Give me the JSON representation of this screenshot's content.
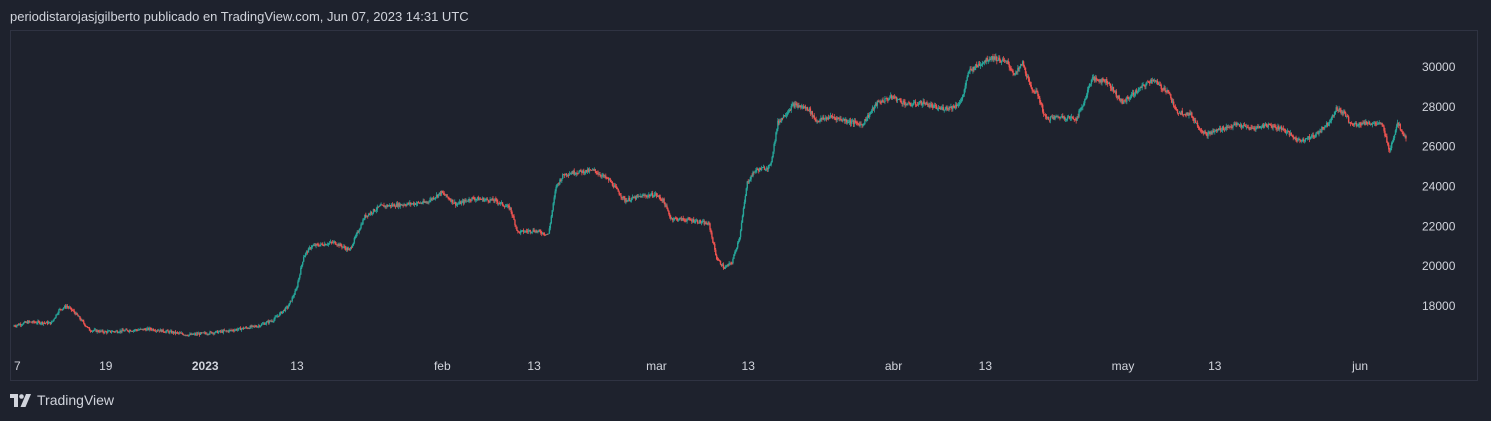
{
  "header": {
    "text": "periodistarojasjgilberto publicado en TradingView.com, Jun 07, 2023 14:31 UTC"
  },
  "footer": {
    "brand": "TradingView"
  },
  "colors": {
    "background": "#1e222d",
    "up": "#26a69a",
    "down": "#ef5350",
    "axis_text": "#d1d4dc",
    "border": "#2f3342"
  },
  "chart_data": {
    "type": "candlestick",
    "title": "",
    "xlabel": "",
    "ylabel": "",
    "x_range": [
      "2022-12-07",
      "2023-06-07"
    ],
    "ylim": [
      16000,
      31500
    ],
    "y_ticks": [
      18000,
      20000,
      22000,
      24000,
      26000,
      28000,
      30000
    ],
    "x_ticks": [
      {
        "date": "2022-12-07",
        "label": "7",
        "bold": false
      },
      {
        "date": "2022-12-19",
        "label": "19",
        "bold": false
      },
      {
        "date": "2023-01-01",
        "label": "2023",
        "bold": true
      },
      {
        "date": "2023-01-13",
        "label": "13",
        "bold": false
      },
      {
        "date": "2023-02-01",
        "label": "feb",
        "bold": false
      },
      {
        "date": "2023-02-13",
        "label": "13",
        "bold": false
      },
      {
        "date": "2023-03-01",
        "label": "mar",
        "bold": false
      },
      {
        "date": "2023-03-13",
        "label": "13",
        "bold": false
      },
      {
        "date": "2023-04-01",
        "label": "abr",
        "bold": false
      },
      {
        "date": "2023-04-13",
        "label": "13",
        "bold": false
      },
      {
        "date": "2023-05-01",
        "label": "may",
        "bold": false
      },
      {
        "date": "2023-05-13",
        "label": "13",
        "bold": false
      },
      {
        "date": "2023-06-01",
        "label": "jun",
        "bold": false
      }
    ],
    "price_path": [
      [
        "2022-12-07",
        17000
      ],
      [
        "2022-12-09",
        17200
      ],
      [
        "2022-12-12",
        17150
      ],
      [
        "2022-12-13",
        17800
      ],
      [
        "2022-12-14",
        18000
      ],
      [
        "2022-12-15",
        17700
      ],
      [
        "2022-12-17",
        16800
      ],
      [
        "2022-12-19",
        16700
      ],
      [
        "2022-12-25",
        16850
      ],
      [
        "2022-12-30",
        16550
      ],
      [
        "2023-01-04",
        16750
      ],
      [
        "2023-01-08",
        17000
      ],
      [
        "2023-01-10",
        17300
      ],
      [
        "2023-01-12",
        18000
      ],
      [
        "2023-01-13",
        18800
      ],
      [
        "2023-01-14",
        20500
      ],
      [
        "2023-01-15",
        21000
      ],
      [
        "2023-01-18",
        21200
      ],
      [
        "2023-01-20",
        20800
      ],
      [
        "2023-01-22",
        22500
      ],
      [
        "2023-01-24",
        23000
      ],
      [
        "2023-01-27",
        23100
      ],
      [
        "2023-01-30",
        23200
      ],
      [
        "2023-02-01",
        23700
      ],
      [
        "2023-02-03",
        23100
      ],
      [
        "2023-02-05",
        23400
      ],
      [
        "2023-02-08",
        23300
      ],
      [
        "2023-02-10",
        22900
      ],
      [
        "2023-02-11",
        21700
      ],
      [
        "2023-02-13",
        21800
      ],
      [
        "2023-02-15",
        21600
      ],
      [
        "2023-02-16",
        24000
      ],
      [
        "2023-02-17",
        24600
      ],
      [
        "2023-02-18",
        24700
      ],
      [
        "2023-02-21",
        24800
      ],
      [
        "2023-02-23",
        24300
      ],
      [
        "2023-02-25",
        23300
      ],
      [
        "2023-02-27",
        23500
      ],
      [
        "2023-03-01",
        23600
      ],
      [
        "2023-03-02",
        23300
      ],
      [
        "2023-03-03",
        22400
      ],
      [
        "2023-03-06",
        22300
      ],
      [
        "2023-03-08",
        22100
      ],
      [
        "2023-03-09",
        20400
      ],
      [
        "2023-03-10",
        19900
      ],
      [
        "2023-03-11",
        20200
      ],
      [
        "2023-03-12",
        21500
      ],
      [
        "2023-03-13",
        24200
      ],
      [
        "2023-03-14",
        24800
      ],
      [
        "2023-03-16",
        25000
      ],
      [
        "2023-03-17",
        27200
      ],
      [
        "2023-03-19",
        28100
      ],
      [
        "2023-03-21",
        27900
      ],
      [
        "2023-03-22",
        27300
      ],
      [
        "2023-03-24",
        27500
      ],
      [
        "2023-03-26",
        27300
      ],
      [
        "2023-03-28",
        27100
      ],
      [
        "2023-03-30",
        28200
      ],
      [
        "2023-04-01",
        28500
      ],
      [
        "2023-04-03",
        28100
      ],
      [
        "2023-04-05",
        28200
      ],
      [
        "2023-04-07",
        27900
      ],
      [
        "2023-04-09",
        28000
      ],
      [
        "2023-04-10",
        28300
      ],
      [
        "2023-04-11",
        29800
      ],
      [
        "2023-04-13",
        30300
      ],
      [
        "2023-04-14",
        30500
      ],
      [
        "2023-04-16",
        30200
      ],
      [
        "2023-04-17",
        29600
      ],
      [
        "2023-04-18",
        30200
      ],
      [
        "2023-04-19",
        29000
      ],
      [
        "2023-04-20",
        28600
      ],
      [
        "2023-04-21",
        27400
      ],
      [
        "2023-04-23",
        27500
      ],
      [
        "2023-04-25",
        27400
      ],
      [
        "2023-04-26",
        28200
      ],
      [
        "2023-04-27",
        29400
      ],
      [
        "2023-04-29",
        29300
      ],
      [
        "2023-05-01",
        28200
      ],
      [
        "2023-05-03",
        28800
      ],
      [
        "2023-05-05",
        29400
      ],
      [
        "2023-05-06",
        29000
      ],
      [
        "2023-05-07",
        28800
      ],
      [
        "2023-05-08",
        27800
      ],
      [
        "2023-05-10",
        27600
      ],
      [
        "2023-05-11",
        27000
      ],
      [
        "2023-05-12",
        26600
      ],
      [
        "2023-05-14",
        26900
      ],
      [
        "2023-05-16",
        27100
      ],
      [
        "2023-05-18",
        26900
      ],
      [
        "2023-05-20",
        27100
      ],
      [
        "2023-05-22",
        26900
      ],
      [
        "2023-05-24",
        26300
      ],
      [
        "2023-05-26",
        26500
      ],
      [
        "2023-05-28",
        27200
      ],
      [
        "2023-05-29",
        27900
      ],
      [
        "2023-05-30",
        27700
      ],
      [
        "2023-05-31",
        27100
      ],
      [
        "2023-06-02",
        27200
      ],
      [
        "2023-06-04",
        27100
      ],
      [
        "2023-06-05",
        25800
      ],
      [
        "2023-06-06",
        27200
      ],
      [
        "2023-06-07",
        26500
      ]
    ]
  }
}
